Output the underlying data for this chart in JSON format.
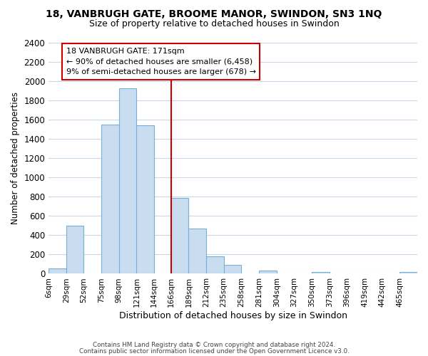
{
  "title": "18, VANBRUGH GATE, BROOME MANOR, SWINDON, SN3 1NQ",
  "subtitle": "Size of property relative to detached houses in Swindon",
  "xlabel": "Distribution of detached houses by size in Swindon",
  "ylabel": "Number of detached properties",
  "bar_color": "#c8ddf0",
  "bar_edge_color": "#7aafd4",
  "categories": [
    "6sqm",
    "29sqm",
    "52sqm",
    "75sqm",
    "98sqm",
    "121sqm",
    "144sqm",
    "166sqm",
    "189sqm",
    "212sqm",
    "235sqm",
    "258sqm",
    "281sqm",
    "304sqm",
    "327sqm",
    "350sqm",
    "373sqm",
    "396sqm",
    "419sqm",
    "442sqm",
    "465sqm"
  ],
  "x_starts": [
    6,
    29,
    52,
    75,
    98,
    121,
    144,
    166,
    189,
    212,
    235,
    258,
    281,
    304,
    327,
    350,
    373,
    396,
    419,
    442,
    465
  ],
  "values": [
    55,
    500,
    0,
    1550,
    1930,
    1540,
    0,
    790,
    470,
    180,
    90,
    0,
    30,
    0,
    0,
    20,
    0,
    0,
    0,
    0,
    15
  ],
  "bin_width": 23,
  "ylim": [
    0,
    2400
  ],
  "yticks": [
    0,
    200,
    400,
    600,
    800,
    1000,
    1200,
    1400,
    1600,
    1800,
    2000,
    2200,
    2400
  ],
  "xlim_left": 6,
  "xlim_right": 488,
  "property_line_x": 166,
  "property_line_color": "#cc0000",
  "annotation_text": "18 VANBRUGH GATE: 171sqm\n← 90% of detached houses are smaller (6,458)\n9% of semi-detached houses are larger (678) →",
  "annotation_box_color": "#ffffff",
  "annotation_box_edge": "#cc0000",
  "footnote1": "Contains HM Land Registry data © Crown copyright and database right 2024.",
  "footnote2": "Contains public sector information licensed under the Open Government Licence v3.0.",
  "background_color": "#ffffff",
  "grid_color": "#c8d8e8"
}
